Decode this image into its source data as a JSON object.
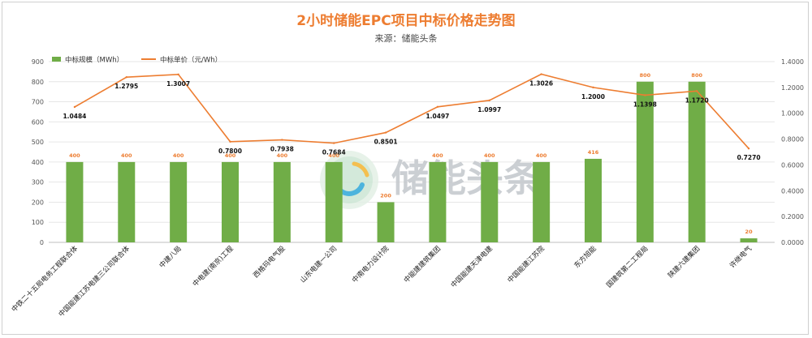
{
  "header": {
    "title": "2小时储能EPC项目中标价格走势图",
    "subtitle": "来源：储能头条"
  },
  "watermark": {
    "text": "储能头条"
  },
  "colors": {
    "bar": "#70AD47",
    "line": "#ED7D31",
    "title": "#ED7D31",
    "grid": "#e6e6e6"
  },
  "chart_data": {
    "type": "bar",
    "title": "2小时储能EPC项目中标价格走势图",
    "subtitle": "来源：储能头条",
    "categories": [
      "中铁二十五局电务工程联合体",
      "中国能建江苏电建三公司联合体",
      "中建八局",
      "中电建(南京)工程",
      "西格玛电气股",
      "山东电建一公司",
      "中南电力设计院",
      "中能建建筑集团",
      "中国能建天津电建",
      "中国能建江苏院",
      "东方旭能",
      "国建筑第二工程局",
      "陕建六建集团",
      "许继电气"
    ],
    "series": [
      {
        "name": "中标规模（MWh）",
        "type": "bar",
        "axis": "left",
        "values": [
          400,
          400,
          400,
          400,
          400,
          400,
          200,
          400,
          400,
          400,
          416,
          800,
          800,
          20
        ],
        "labels": [
          "400",
          "400",
          "400",
          "400",
          "400",
          "400",
          "200",
          "400",
          "400",
          "400",
          "416",
          "800",
          "800",
          "20"
        ]
      },
      {
        "name": "中标单价（元/Wh）",
        "type": "line",
        "axis": "right",
        "values": [
          1.0484,
          1.2795,
          1.3007,
          0.78,
          0.7938,
          0.7684,
          0.8501,
          1.0497,
          1.0997,
          1.3026,
          1.2,
          1.1398,
          1.172,
          0.727
        ],
        "labels": [
          "1.0484",
          "1.2795",
          "1.3007",
          "0.7800",
          "0.7938",
          "0.7684",
          "0.8501",
          "1.0497",
          "1.0997",
          "1.3026",
          "1.2000",
          "1.1398",
          "1.1720",
          "0.7270"
        ]
      }
    ],
    "y_left": {
      "range": [
        0,
        900
      ],
      "ticks": [
        0,
        100,
        200,
        300,
        400,
        500,
        600,
        700,
        800,
        900
      ],
      "tick_labels": [
        "0",
        "100",
        "200",
        "300",
        "400",
        "500",
        "600",
        "700",
        "800",
        "900"
      ]
    },
    "y_right": {
      "range": [
        0,
        1.4
      ],
      "ticks": [
        0,
        0.2,
        0.4,
        0.6,
        0.8,
        1.0,
        1.2,
        1.4
      ],
      "tick_labels": [
        "0.0000",
        "0.2000",
        "0.4000",
        "0.6000",
        "0.8000",
        "1.0000",
        "1.2000",
        "1.4000"
      ]
    },
    "legend": {
      "position": "top-left"
    },
    "grid": true
  }
}
